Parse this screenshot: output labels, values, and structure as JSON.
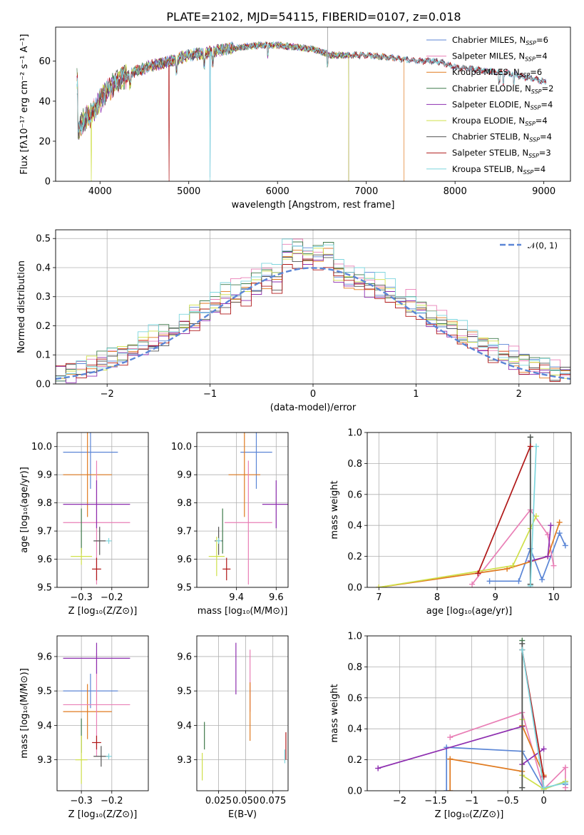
{
  "figure": {
    "title": "PLATE=2102, MJD=54115, FIBERID=0107, z=0.018"
  },
  "colors": {
    "Chabrier MILES": "#5b86d6",
    "Salpeter MILES": "#e97fb6",
    "Kroupa MILES": "#e07a1f",
    "Chabrier ELODIE": "#3f7a4a",
    "Salpeter ELODIE": "#8e2fb0",
    "Kroupa ELODIE": "#cfe04a",
    "Chabrier STELIB": "#555555",
    "Salpeter STELIB": "#b01818",
    "Kroupa STELIB": "#7ed6de"
  },
  "chart_data": [
    {
      "id": "spectrum",
      "type": "line",
      "xlabel": "wavelength [Angstrom, rest frame]",
      "ylabel": "Flux [fλ10⁻¹⁷ erg cm⁻² s⁻¹ A⁻¹]",
      "xlim": [
        3500,
        9300
      ],
      "ylim": [
        0,
        77
      ],
      "xticks": [
        4000,
        5000,
        6000,
        7000,
        8000,
        9000
      ],
      "yticks": [
        0,
        20,
        40,
        60
      ],
      "grid": false,
      "legend_position": "top-right",
      "continuum": {
        "x": [
          3750,
          3800,
          3900,
          4000,
          4100,
          4200,
          4400,
          4600,
          4800,
          5000,
          5200,
          5400,
          5600,
          5800,
          6000,
          6200,
          6400,
          6600,
          6800,
          7000,
          7200,
          7400,
          7600,
          7800,
          8000,
          8200,
          8400,
          8600,
          8800,
          9000
        ],
        "y": [
          24,
          30,
          33,
          40,
          46,
          50,
          55,
          58,
          60,
          63,
          64,
          66,
          67,
          68,
          68,
          67,
          66,
          63,
          63,
          63,
          62,
          61,
          60,
          60,
          57,
          56,
          55,
          54,
          52,
          50
        ]
      },
      "series": [
        {
          "name": "Chabrier MILES, N_SSP=6"
        },
        {
          "name": "Salpeter MILES, N_SSP=4"
        },
        {
          "name": "Kroupa MILES, N_SSP=6",
          "cutoff_at": 7420
        },
        {
          "name": "Chabrier ELODIE, N_SSP=2",
          "cutoff_at": 6800
        },
        {
          "name": "Salpeter ELODIE, N_SSP=4",
          "cutoff_at": 6800
        },
        {
          "name": "Kroupa ELODIE, N_SSP=4",
          "cutoff_at": 6800
        },
        {
          "name": "Chabrier STELIB, N_SSP=4"
        },
        {
          "name": "Salpeter STELIB, N_SSP=3"
        },
        {
          "name": "Kroupa STELIB, N_SSP=4"
        }
      ],
      "dropouts_x": [
        3900,
        4780,
        5240,
        6800,
        7420
      ],
      "emission_line_x": 6565
    },
    {
      "id": "residuals",
      "type": "histogram",
      "xlabel": "(data-model)/error",
      "ylabel": "Normed distribution",
      "xlim": [
        -2.5,
        2.5
      ],
      "ylim": [
        0,
        0.53
      ],
      "xticks": [
        -2,
        -1,
        0,
        1,
        2
      ],
      "yticks": [
        0.0,
        0.1,
        0.2,
        0.3,
        0.4,
        0.5
      ],
      "grid": true,
      "bin_width": 0.1,
      "reference_curve": {
        "label": "𝒩(0, 1)",
        "mean": 0,
        "sigma": 1,
        "style": "dashed",
        "color": "#5b86d6"
      },
      "series_order": [
        "Chabrier MILES",
        "Salpeter MILES",
        "Kroupa MILES",
        "Chabrier ELODIE",
        "Salpeter ELODIE",
        "Kroupa ELODIE",
        "Chabrier STELIB",
        "Salpeter STELIB",
        "Kroupa STELIB"
      ],
      "series_offsets": [
        0.0,
        0.02,
        -0.01,
        0.01,
        -0.02,
        0.015,
        0.0,
        -0.015,
        0.02
      ],
      "peak_values": [
        0.48,
        0.5,
        0.47,
        0.49,
        0.46,
        0.47,
        0.45,
        0.44,
        0.5
      ]
    },
    {
      "id": "age_vs_Z",
      "type": "errorbar",
      "xlabel": "Z [log₁₀(Z/Z⊙)]",
      "ylabel": "age  [log₁₀(age/yr)]",
      "xlim": [
        -0.38,
        -0.08
      ],
      "ylim": [
        9.5,
        10.05
      ],
      "xticks": [
        -0.3,
        -0.2
      ],
      "yticks": [
        9.5,
        9.6,
        9.7,
        9.8,
        9.9,
        10.0
      ],
      "grid": true,
      "points": [
        {
          "series": "Chabrier MILES",
          "x": -0.27,
          "xerr": 0.09,
          "y": 9.98,
          "yerr": 0.13
        },
        {
          "series": "Kroupa MILES",
          "x": -0.28,
          "xerr": 0.08,
          "y": 9.9,
          "yerr": 0.15
        },
        {
          "series": "Salpeter MILES",
          "x": -0.25,
          "xerr": 0.11,
          "y": 9.73,
          "yerr": 0.22
        },
        {
          "series": "Salpeter ELODIE",
          "x": -0.25,
          "xerr": 0.11,
          "y": 9.795,
          "yerr": 0.085
        },
        {
          "series": "Chabrier ELODIE",
          "x": -0.3,
          "xerr": 0.0,
          "y": 9.7,
          "yerr": 0.08
        },
        {
          "series": "Kroupa STELIB",
          "x": -0.21,
          "xerr": 0.0,
          "y": 9.665,
          "yerr": 0.0
        },
        {
          "series": "Chabrier STELIB",
          "x": -0.24,
          "xerr": 0.02,
          "y": 9.665,
          "yerr": 0.05
        },
        {
          "series": "Kroupa ELODIE",
          "x": -0.3,
          "xerr": 0.035,
          "y": 9.61,
          "yerr": 0.03
        },
        {
          "series": "Salpeter STELIB",
          "x": -0.25,
          "xerr": 0.015,
          "y": 9.565,
          "yerr": 0.04
        }
      ]
    },
    {
      "id": "age_vs_mass",
      "type": "errorbar",
      "xlabel": "mass [log₁₀(M/M⊙)]",
      "ylabel": "",
      "xlim": [
        9.2,
        9.66
      ],
      "ylim": [
        9.5,
        10.05
      ],
      "xticks": [
        9.4,
        9.6
      ],
      "yticks": [
        9.5,
        9.6,
        9.7,
        9.8,
        9.9,
        10.0
      ],
      "grid": true,
      "points": [
        {
          "series": "Chabrier MILES",
          "x": 9.5,
          "xerr": 0.08,
          "y": 9.98,
          "yerr": 0.13
        },
        {
          "series": "Kroupa MILES",
          "x": 9.44,
          "xerr": 0.08,
          "y": 9.9,
          "yerr": 0.15
        },
        {
          "series": "Salpeter MILES",
          "x": 9.46,
          "xerr": 0.12,
          "y": 9.73,
          "yerr": 0.22
        },
        {
          "series": "Salpeter ELODIE",
          "x": 9.6,
          "xerr": 0.07,
          "y": 9.795,
          "yerr": 0.085
        },
        {
          "series": "Chabrier ELODIE",
          "x": 9.33,
          "xerr": 0.0,
          "y": 9.7,
          "yerr": 0.08
        },
        {
          "series": "Chabrier STELIB",
          "x": 9.31,
          "xerr": 0.02,
          "y": 9.665,
          "yerr": 0.05
        },
        {
          "series": "Kroupa ELODIE",
          "x": 9.3,
          "xerr": 0.04,
          "y": 9.61,
          "yerr": 0.07
        },
        {
          "series": "Salpeter STELIB",
          "x": 9.35,
          "xerr": 0.02,
          "y": 9.565,
          "yerr": 0.04
        },
        {
          "series": "Kroupa STELIB",
          "x": 9.31,
          "xerr": 0.0,
          "y": 9.665,
          "yerr": 0.0
        }
      ]
    },
    {
      "id": "mass_weight_vs_age",
      "type": "line",
      "xlabel": "age  [log₁₀(age/yr)]",
      "ylabel": "mass weight",
      "xlim": [
        6.8,
        10.3
      ],
      "ylim": [
        0,
        1.0
      ],
      "xticks": [
        7,
        8,
        9,
        10
      ],
      "yticks": [
        0.0,
        0.2,
        0.4,
        0.6,
        0.8,
        1.0
      ],
      "grid": true,
      "marker": "+",
      "series": [
        {
          "name": "Chabrier MILES",
          "x": [
            8.9,
            9.4,
            9.6,
            9.8,
            10.1,
            10.2
          ],
          "y": [
            0.04,
            0.04,
            0.25,
            0.05,
            0.35,
            0.27
          ]
        },
        {
          "name": "Salpeter MILES",
          "x": [
            8.6,
            9.6,
            9.9,
            10.0
          ],
          "y": [
            0.02,
            0.5,
            0.34,
            0.14
          ]
        },
        {
          "name": "Kroupa MILES",
          "x": [
            7.0,
            9.2,
            9.9,
            10.1
          ],
          "y": [
            0.0,
            0.12,
            0.2,
            0.42
          ]
        },
        {
          "name": "Chabrier ELODIE",
          "x": [
            9.6,
            9.6
          ],
          "y": [
            0.02,
            0.97
          ]
        },
        {
          "name": "Salpeter ELODIE",
          "x": [
            9.6,
            9.9,
            9.95
          ],
          "y": [
            0.17,
            0.2,
            0.4
          ]
        },
        {
          "name": "Kroupa ELODIE",
          "x": [
            7.0,
            9.3,
            9.6,
            9.7
          ],
          "y": [
            0.0,
            0.14,
            0.38,
            0.46
          ]
        },
        {
          "name": "Chabrier STELIB",
          "x": [
            9.6,
            9.6
          ],
          "y": [
            0.02,
            0.97
          ]
        },
        {
          "name": "Salpeter STELIB",
          "x": [
            8.7,
            9.6
          ],
          "y": [
            0.09,
            0.91
          ]
        },
        {
          "name": "Kroupa STELIB",
          "x": [
            9.6,
            9.7
          ],
          "y": [
            0.01,
            0.91
          ]
        }
      ]
    },
    {
      "id": "mass_vs_Z",
      "type": "errorbar",
      "xlabel": "Z [log₁₀(Z/Z⊙)]",
      "ylabel": "mass [log₁₀(M/M⊙)]",
      "xlim": [
        -0.38,
        -0.08
      ],
      "ylim": [
        9.21,
        9.66
      ],
      "xticks": [
        -0.3,
        -0.2
      ],
      "yticks": [
        9.3,
        9.4,
        9.5,
        9.6
      ],
      "grid": true,
      "points": [
        {
          "series": "Chabrier MILES",
          "x": -0.27,
          "xerr": 0.09,
          "y": 9.5,
          "yerr": 0.05
        },
        {
          "series": "Kroupa MILES",
          "x": -0.28,
          "xerr": 0.08,
          "y": 9.44,
          "yerr": 0.08
        },
        {
          "series": "Salpeter MILES",
          "x": -0.25,
          "xerr": 0.11,
          "y": 9.46,
          "yerr": 0.15
        },
        {
          "series": "Salpeter ELODIE",
          "x": -0.25,
          "xerr": 0.11,
          "y": 9.595,
          "yerr": 0.045
        },
        {
          "series": "Chabrier ELODIE",
          "x": -0.3,
          "xerr": 0.0,
          "y": 9.37,
          "yerr": 0.05
        },
        {
          "series": "Chabrier STELIB",
          "x": -0.235,
          "xerr": 0.025,
          "y": 9.31,
          "yerr": 0.03
        },
        {
          "series": "Kroupa ELODIE",
          "x": -0.3,
          "xerr": 0.02,
          "y": 9.3,
          "yerr": 0.07
        },
        {
          "series": "Salpeter STELIB",
          "x": -0.25,
          "xerr": 0.015,
          "y": 9.35,
          "yerr": 0.02
        },
        {
          "series": "Kroupa STELIB",
          "x": -0.21,
          "xerr": 0.0,
          "y": 9.31,
          "yerr": 0.0
        }
      ]
    },
    {
      "id": "mass_vs_ebv",
      "type": "errorbar",
      "xlabel": "E(B-V)",
      "ylabel": "",
      "xlim": [
        0.005,
        0.089
      ],
      "ylim": [
        9.21,
        9.66
      ],
      "xticks": [
        0.025,
        0.05,
        0.075
      ],
      "xticklabels": [
        "0.025",
        "0.050",
        "0.075"
      ],
      "yticks": [
        9.3,
        9.4,
        9.5,
        9.6
      ],
      "grid": true,
      "points": [
        {
          "series": "Salpeter ELODIE",
          "x": 0.041,
          "xerr": 0.0,
          "y": 9.565,
          "yerr": 0.075
        },
        {
          "series": "Salpeter MILES",
          "x": 0.054,
          "xerr": 0.0,
          "y": 9.53,
          "yerr": 0.09
        },
        {
          "series": "Kroupa MILES",
          "x": 0.054,
          "xerr": 0.0,
          "y": 9.44,
          "yerr": 0.085
        },
        {
          "series": "Chabrier ELODIE",
          "x": 0.012,
          "xerr": 0.0,
          "y": 9.37,
          "yerr": 0.04
        },
        {
          "series": "Kroupa ELODIE",
          "x": 0.01,
          "xerr": 0.0,
          "y": 9.28,
          "yerr": 0.04
        },
        {
          "series": "Salpeter STELIB",
          "x": 0.087,
          "xerr": 0.0,
          "y": 9.34,
          "yerr": 0.04
        },
        {
          "series": "Kroupa STELIB",
          "x": 0.086,
          "xerr": 0.0,
          "y": 9.31,
          "yerr": 0.02
        }
      ]
    },
    {
      "id": "mass_weight_vs_Z",
      "type": "line",
      "xlabel": "Z [log₁₀(Z/Z⊙)]",
      "ylabel": "mass weight",
      "xlim": [
        -2.45,
        0.38
      ],
      "ylim": [
        0,
        1.0
      ],
      "xticks": [
        -2.0,
        -1.5,
        -1.0,
        -0.5,
        0.0
      ],
      "yticks": [
        0.0,
        0.2,
        0.4,
        0.6,
        0.8,
        1.0
      ],
      "grid": true,
      "marker": "+",
      "series": [
        {
          "name": "Chabrier MILES",
          "x": [
            -1.35,
            -1.35,
            -0.3,
            0.0,
            0.3,
            0.3
          ],
          "y": [
            0.0,
            0.28,
            0.255,
            0.01,
            0.06,
            0.04
          ]
        },
        {
          "name": "Salpeter MILES",
          "x": [
            -1.3,
            -0.3,
            0.0,
            0.3,
            0.3
          ],
          "y": [
            0.345,
            0.505,
            0.01,
            0.15,
            0.02
          ]
        },
        {
          "name": "Kroupa MILES",
          "x": [
            -1.3,
            -1.3,
            -0.3,
            -0.3,
            0.0
          ],
          "y": [
            0.0,
            0.205,
            0.125,
            0.42,
            0.1
          ]
        },
        {
          "name": "Chabrier ELODIE",
          "x": [
            -0.3,
            -0.3
          ],
          "y": [
            0.02,
            0.97
          ]
        },
        {
          "name": "Salpeter ELODIE",
          "x": [
            -2.3,
            -0.3,
            -0.3,
            0.0
          ],
          "y": [
            0.145,
            0.415,
            0.17,
            0.27
          ]
        },
        {
          "name": "Kroupa ELODIE",
          "x": [
            -0.3,
            -0.3,
            0.0,
            0.3
          ],
          "y": [
            0.46,
            0.1,
            0.01,
            0.06
          ]
        },
        {
          "name": "Chabrier STELIB",
          "x": [
            -0.3,
            -0.3
          ],
          "y": [
            0.02,
            0.95
          ]
        },
        {
          "name": "Salpeter STELIB",
          "x": [
            -0.3,
            0.0
          ],
          "y": [
            0.91,
            0.09
          ]
        },
        {
          "name": "Kroupa STELIB",
          "x": [
            -0.3,
            0.0,
            0.3
          ],
          "y": [
            0.91,
            0.02,
            0.05
          ]
        }
      ]
    }
  ]
}
